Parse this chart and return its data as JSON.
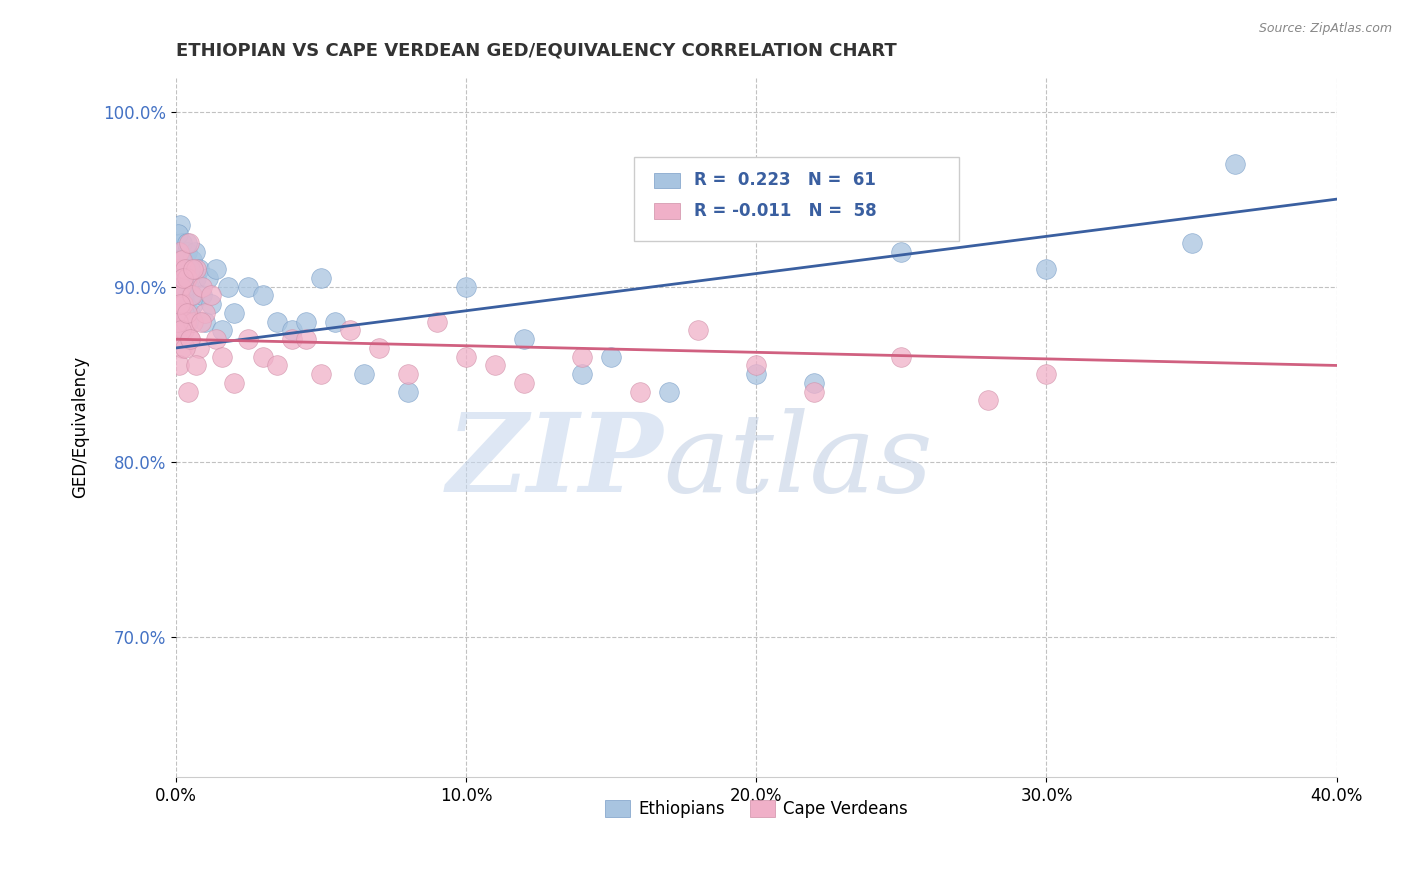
{
  "title": "ETHIOPIAN VS CAPE VERDEAN GED/EQUIVALENCY CORRELATION CHART",
  "source": "Source: ZipAtlas.com",
  "ylabel": "GED/Equivalency",
  "xlim": [
    0.0,
    40.0
  ],
  "ylim": [
    62.0,
    102.0
  ],
  "xticks": [
    0.0,
    10.0,
    20.0,
    30.0,
    40.0
  ],
  "yticks": [
    70.0,
    80.0,
    90.0,
    100.0
  ],
  "ytick_labels": [
    "70.0%",
    "80.0%",
    "90.0%",
    "100.0%"
  ],
  "xtick_labels": [
    "0.0%",
    "10.0%",
    "20.0%",
    "30.0%",
    "40.0%"
  ],
  "ethiopian_R": 0.223,
  "ethiopian_N": 61,
  "capeverdean_R": -0.011,
  "capeverdean_N": 58,
  "blue_scatter_color": "#a8c4e0",
  "pink_scatter_color": "#f0b0c8",
  "blue_line_color": "#3a5fa0",
  "pink_line_color": "#d06080",
  "legend_label_blue": "Ethiopians",
  "legend_label_pink": "Cape Verdeans",
  "watermark_text": "ZIPatlas",
  "background_color": "#ffffff",
  "eth_x": [
    0.05,
    0.08,
    0.1,
    0.12,
    0.15,
    0.15,
    0.18,
    0.2,
    0.22,
    0.25,
    0.28,
    0.3,
    0.32,
    0.35,
    0.4,
    0.45,
    0.5,
    0.55,
    0.6,
    0.65,
    0.7,
    0.8,
    0.9,
    1.0,
    1.1,
    1.2,
    1.4,
    1.6,
    1.8,
    2.0,
    2.5,
    3.0,
    3.5,
    4.0,
    5.0,
    5.5,
    6.5,
    8.0,
    10.0,
    12.0,
    14.0,
    15.0,
    17.0,
    20.0,
    22.0,
    25.0,
    30.0,
    35.0,
    36.5
  ],
  "eth_y": [
    88.5,
    90.5,
    92.0,
    89.0,
    91.5,
    93.5,
    90.0,
    92.5,
    88.0,
    91.0,
    90.5,
    89.5,
    88.0,
    91.0,
    92.0,
    90.0,
    88.5,
    91.5,
    89.0,
    92.0,
    90.5,
    91.0,
    89.5,
    88.0,
    90.5,
    89.0,
    91.0,
    87.5,
    90.0,
    88.5,
    90.0,
    89.5,
    88.0,
    87.5,
    90.5,
    88.0,
    85.0,
    84.0,
    90.0,
    87.0,
    85.0,
    86.0,
    84.0,
    85.0,
    84.5,
    92.0,
    91.0,
    92.5,
    97.0
  ],
  "cv_x": [
    0.05,
    0.08,
    0.1,
    0.12,
    0.15,
    0.18,
    0.2,
    0.22,
    0.25,
    0.28,
    0.3,
    0.35,
    0.4,
    0.45,
    0.5,
    0.55,
    0.6,
    0.7,
    0.8,
    0.9,
    1.0,
    1.2,
    1.4,
    1.6,
    2.0,
    2.5,
    3.0,
    3.5,
    4.0,
    5.0,
    6.0,
    7.0,
    8.0,
    9.0,
    10.0,
    11.0,
    12.0,
    14.0,
    16.0,
    18.0,
    20.0,
    22.0,
    25.0,
    28.0,
    30.0
  ],
  "cv_y": [
    87.0,
    91.0,
    89.5,
    92.0,
    88.5,
    90.0,
    86.5,
    91.5,
    89.0,
    87.5,
    91.0,
    88.0,
    90.5,
    92.5,
    87.0,
    89.5,
    88.0,
    91.0,
    86.5,
    90.0,
    88.5,
    89.5,
    87.0,
    86.0,
    84.5,
    87.0,
    86.0,
    85.5,
    87.0,
    85.0,
    87.5,
    86.5,
    85.0,
    88.0,
    86.0,
    85.5,
    84.5,
    86.0,
    84.0,
    87.5,
    85.5,
    84.0,
    86.0,
    83.5,
    85.0
  ],
  "blue_line_x0": 0.0,
  "blue_line_y0": 86.5,
  "blue_line_x1": 40.0,
  "blue_line_y1": 95.0,
  "pink_line_x0": 0.0,
  "pink_line_y0": 87.0,
  "pink_line_x1": 40.0,
  "pink_line_y1": 85.5
}
